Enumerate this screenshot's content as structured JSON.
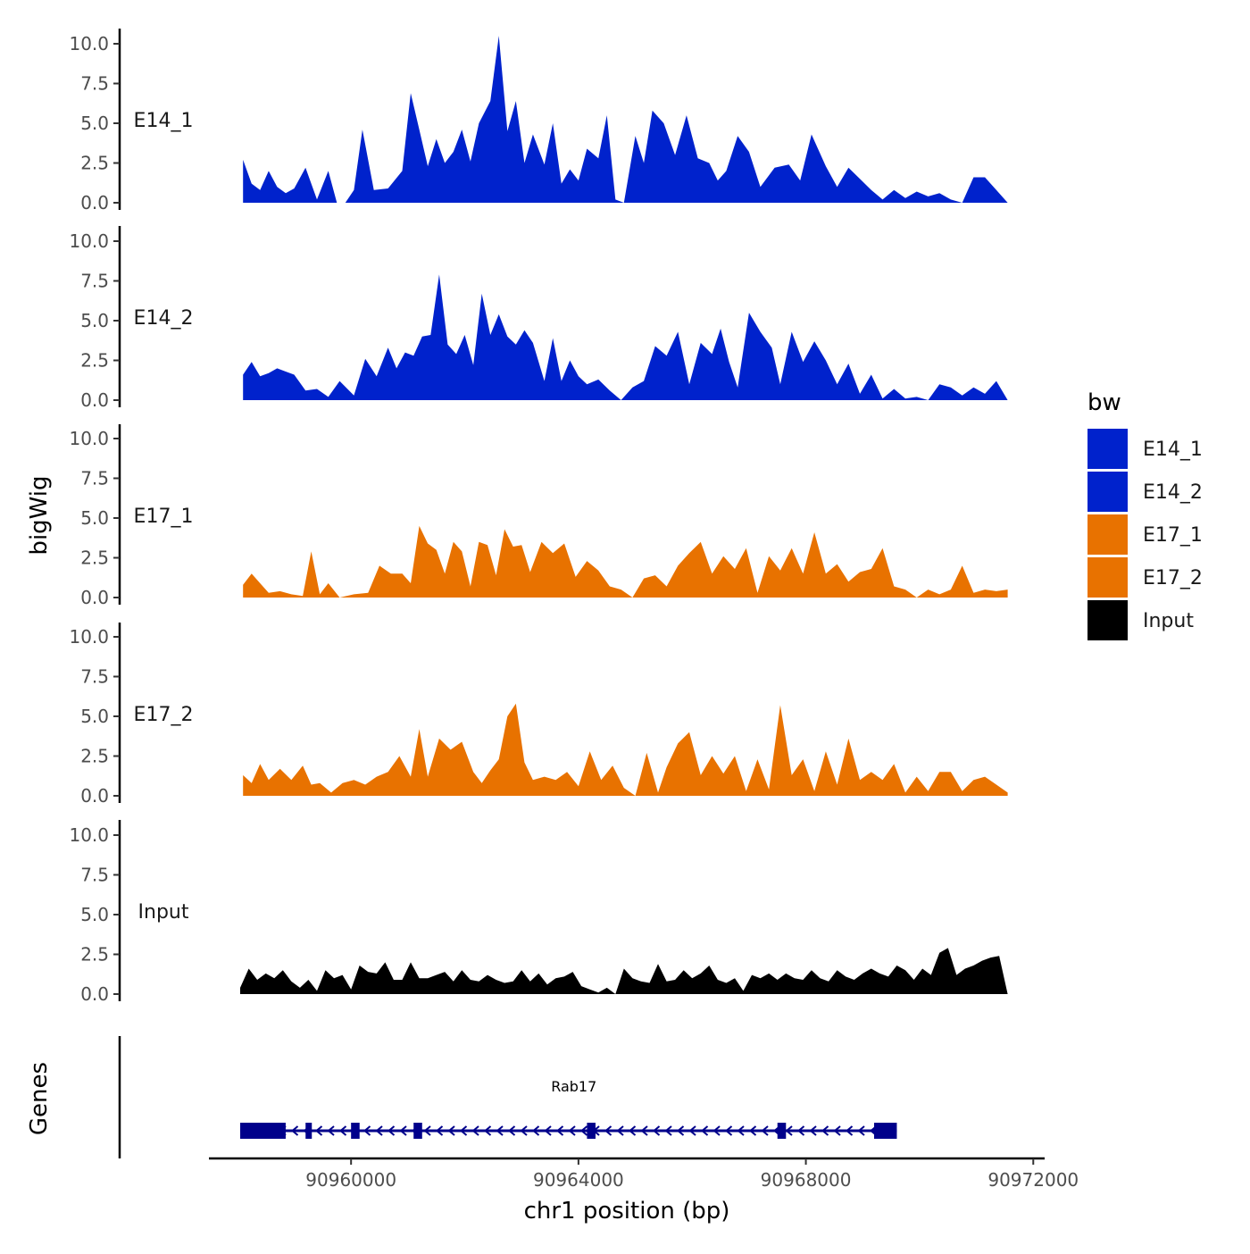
{
  "chart_data": {
    "type": "area",
    "title": "",
    "xlabel": "chr1 position (bp)",
    "ylabel": "bigWig",
    "gene_panel_label": "Genes",
    "xlim": [
      90957500,
      90972200
    ],
    "ylim": [
      0,
      10.5
    ],
    "x_ticks": [
      {
        "value": 90960000,
        "label": "90960000"
      },
      {
        "value": 90964000,
        "label": "90964000"
      },
      {
        "value": 90968000,
        "label": "90968000"
      },
      {
        "value": 90972000,
        "label": "90972000"
      }
    ],
    "y_ticks": [
      {
        "value": 0,
        "label": "0.0"
      },
      {
        "value": 2.5,
        "label": "2.5"
      },
      {
        "value": 5,
        "label": "5.0"
      },
      {
        "value": 7.5,
        "label": "7.5"
      },
      {
        "value": 10,
        "label": "10.0"
      }
    ],
    "legend": {
      "title": "bw",
      "position": "right",
      "entries": [
        {
          "label": "E14_1",
          "color": "#0022cc"
        },
        {
          "label": "E14_2",
          "color": "#0022cc"
        },
        {
          "label": "E17_1",
          "color": "#e87200"
        },
        {
          "label": "E17_2",
          "color": "#e87200"
        },
        {
          "label": "Input",
          "color": "#000000"
        }
      ]
    },
    "series": [
      {
        "name": "E14_1",
        "color": "#0022cc",
        "x": [
          90958100,
          90958250,
          90958400,
          90958550,
          90958700,
          90958850,
          90959000,
          90959200,
          90959400,
          90959600,
          90959750,
          90959900,
          90960050,
          90960200,
          90960400,
          90960650,
          90960900,
          90961050,
          90961200,
          90961350,
          90961500,
          90961650,
          90961800,
          90961950,
          90962100,
          90962250,
          90962450,
          90962600,
          90962750,
          90962900,
          90963050,
          90963200,
          90963400,
          90963550,
          90963700,
          90963850,
          90964000,
          90964150,
          90964350,
          90964500,
          90964650,
          90964800,
          90965000,
          90965150,
          90965300,
          90965500,
          90965700,
          90965900,
          90966100,
          90966300,
          90966450,
          90966600,
          90966800,
          90967000,
          90967200,
          90967450,
          90967700,
          90967900,
          90968100,
          90968350,
          90968550,
          90968750,
          90968950,
          90969150,
          90969350,
          90969550,
          90969750,
          90969950,
          90970150,
          90970350,
          90970550,
          90970750,
          90970950,
          90971150,
          90971350,
          90971550
        ],
        "values": [
          2.7,
          1.2,
          0.8,
          2.0,
          1.0,
          0.6,
          0.9,
          2.2,
          0.2,
          2.0,
          0.0,
          0.0,
          0.8,
          4.6,
          0.8,
          0.9,
          2.0,
          6.9,
          4.6,
          2.3,
          4.0,
          2.5,
          3.2,
          4.6,
          2.6,
          5.0,
          6.4,
          10.5,
          4.5,
          6.4,
          2.5,
          4.3,
          2.4,
          5.0,
          1.2,
          2.1,
          1.4,
          3.4,
          2.8,
          5.5,
          0.2,
          0.0,
          4.2,
          2.5,
          5.8,
          5.0,
          3.0,
          5.5,
          2.8,
          2.5,
          1.4,
          2.0,
          4.2,
          3.2,
          1.0,
          2.2,
          2.4,
          1.4,
          4.3,
          2.3,
          1.0,
          2.2,
          1.5,
          0.8,
          0.2,
          0.8,
          0.3,
          0.7,
          0.4,
          0.6,
          0.2,
          0.0,
          1.6,
          1.6,
          0.8,
          0.0
        ]
      },
      {
        "name": "E14_2",
        "color": "#0022cc",
        "x": [
          90958100,
          90958250,
          90958400,
          90958550,
          90958700,
          90958850,
          90959000,
          90959200,
          90959400,
          90959600,
          90959800,
          90960050,
          90960250,
          90960450,
          90960650,
          90960800,
          90960950,
          90961100,
          90961250,
          90961400,
          90961550,
          90961700,
          90961850,
          90962000,
          90962150,
          90962300,
          90962450,
          90962600,
          90962750,
          90962900,
          90963050,
          90963200,
          90963400,
          90963550,
          90963700,
          90963850,
          90964000,
          90964150,
          90964350,
          90964550,
          90964750,
          90964950,
          90965150,
          90965350,
          90965550,
          90965750,
          90965950,
          90966150,
          90966350,
          90966500,
          90966650,
          90966800,
          90967000,
          90967200,
          90967400,
          90967550,
          90967750,
          90967950,
          90968150,
          90968350,
          90968550,
          90968750,
          90968950,
          90969150,
          90969350,
          90969550,
          90969750,
          90969950,
          90970150,
          90970350,
          90970550,
          90970750,
          90970950,
          90971150,
          90971350,
          90971550
        ],
        "values": [
          1.6,
          2.4,
          1.5,
          1.7,
          2.0,
          1.8,
          1.6,
          0.6,
          0.7,
          0.2,
          1.2,
          0.3,
          2.6,
          1.5,
          3.3,
          2.0,
          3.0,
          2.8,
          4.0,
          4.1,
          7.9,
          3.5,
          2.9,
          4.1,
          2.2,
          6.7,
          4.1,
          5.4,
          4.0,
          3.5,
          4.4,
          3.6,
          1.2,
          3.9,
          1.2,
          2.5,
          1.5,
          1.0,
          1.3,
          0.6,
          0.0,
          0.8,
          1.2,
          3.4,
          2.8,
          4.3,
          1.0,
          3.6,
          2.9,
          4.5,
          2.4,
          0.8,
          5.5,
          4.3,
          3.3,
          1.0,
          4.3,
          2.4,
          3.7,
          2.5,
          1.0,
          2.3,
          0.4,
          1.6,
          0.1,
          0.7,
          0.1,
          0.2,
          0.0,
          1.0,
          0.8,
          0.3,
          0.8,
          0.4,
          1.2,
          0.0
        ]
      },
      {
        "name": "E17_1",
        "color": "#e87200",
        "x": [
          90958100,
          90958250,
          90958400,
          90958550,
          90958750,
          90958950,
          90959150,
          90959300,
          90959450,
          90959600,
          90959800,
          90960050,
          90960300,
          90960500,
          90960700,
          90960900,
          90961050,
          90961200,
          90961350,
          90961500,
          90961650,
          90961800,
          90961950,
          90962100,
          90962250,
          90962400,
          90962550,
          90962700,
          90962850,
          90963000,
          90963150,
          90963350,
          90963550,
          90963750,
          90963950,
          90964150,
          90964350,
          90964550,
          90964750,
          90964950,
          90965150,
          90965350,
          90965550,
          90965750,
          90965950,
          90966150,
          90966350,
          90966550,
          90966750,
          90966950,
          90967150,
          90967350,
          90967550,
          90967750,
          90967950,
          90968150,
          90968350,
          90968550,
          90968750,
          90968950,
          90969150,
          90969350,
          90969550,
          90969750,
          90969950,
          90970150,
          90970350,
          90970550,
          90970750,
          90970950,
          90971150,
          90971350,
          90971550
        ],
        "values": [
          0.8,
          1.5,
          0.9,
          0.3,
          0.4,
          0.2,
          0.1,
          2.9,
          0.2,
          0.9,
          0.0,
          0.2,
          0.3,
          2.0,
          1.5,
          1.5,
          0.9,
          4.5,
          3.4,
          3.0,
          1.5,
          3.5,
          2.9,
          0.7,
          3.5,
          3.3,
          1.4,
          4.3,
          3.2,
          3.3,
          1.6,
          3.5,
          2.8,
          3.4,
          1.3,
          2.3,
          1.7,
          0.7,
          0.5,
          0.0,
          1.2,
          1.4,
          0.7,
          2.0,
          2.8,
          3.5,
          1.5,
          2.6,
          1.8,
          3.1,
          0.3,
          2.6,
          1.7,
          3.1,
          1.5,
          4.1,
          1.5,
          2.1,
          1.0,
          1.6,
          1.8,
          3.1,
          0.7,
          0.5,
          0.0,
          0.5,
          0.2,
          0.5,
          2.0,
          0.3,
          0.5,
          0.4,
          0.5
        ]
      },
      {
        "name": "E17_2",
        "color": "#e87200",
        "x": [
          90958100,
          90958250,
          90958400,
          90958550,
          90958750,
          90958950,
          90959150,
          90959300,
          90959450,
          90959650,
          90959850,
          90960050,
          90960250,
          90960450,
          90960650,
          90960850,
          90961050,
          90961200,
          90961350,
          90961550,
          90961750,
          90961950,
          90962150,
          90962300,
          90962450,
          90962600,
          90962750,
          90962900,
          90963050,
          90963200,
          90963400,
          90963600,
          90963800,
          90964000,
          90964200,
          90964400,
          90964600,
          90964800,
          90965000,
          90965200,
          90965400,
          90965550,
          90965750,
          90965950,
          90966150,
          90966350,
          90966550,
          90966750,
          90966950,
          90967150,
          90967350,
          90967550,
          90967750,
          90967950,
          90968150,
          90968350,
          90968550,
          90968750,
          90968950,
          90969150,
          90969350,
          90969550,
          90969750,
          90969950,
          90970150,
          90970350,
          90970550,
          90970750,
          90970950,
          90971150,
          90971350,
          90971550
        ],
        "values": [
          1.3,
          0.8,
          2.0,
          1.0,
          1.7,
          1.0,
          1.9,
          0.7,
          0.8,
          0.2,
          0.8,
          1.0,
          0.7,
          1.2,
          1.5,
          2.5,
          1.2,
          4.2,
          1.2,
          3.6,
          2.9,
          3.4,
          1.5,
          0.8,
          1.6,
          2.3,
          5.0,
          5.8,
          2.1,
          1.0,
          1.2,
          1.0,
          1.5,
          0.6,
          2.8,
          1.0,
          1.9,
          0.5,
          0.0,
          2.7,
          0.2,
          1.8,
          3.3,
          4.0,
          1.3,
          2.5,
          1.4,
          2.5,
          0.3,
          2.3,
          0.4,
          5.7,
          1.3,
          2.3,
          0.3,
          2.8,
          0.7,
          3.6,
          1.0,
          1.5,
          1.0,
          2.0,
          0.2,
          1.2,
          0.3,
          1.5,
          1.5,
          0.3,
          1.0,
          1.2,
          0.7,
          0.2
        ]
      },
      {
        "name": "Input",
        "color": "#000000",
        "x": [
          90958050,
          90958200,
          90958350,
          90958500,
          90958650,
          90958800,
          90958950,
          90959100,
          90959250,
          90959400,
          90959550,
          90959700,
          90959850,
          90960000,
          90960150,
          90960300,
          90960450,
          90960600,
          90960750,
          90960900,
          90961050,
          90961200,
          90961350,
          90961500,
          90961650,
          90961800,
          90961950,
          90962100,
          90962250,
          90962400,
          90962550,
          90962700,
          90962850,
          90963000,
          90963150,
          90963300,
          90963450,
          90963600,
          90963750,
          90963900,
          90964050,
          90964200,
          90964350,
          90964500,
          90964650,
          90964800,
          90964950,
          90965100,
          90965250,
          90965400,
          90965550,
          90965700,
          90965850,
          90966000,
          90966150,
          90966300,
          90966450,
          90966600,
          90966750,
          90966900,
          90967050,
          90967200,
          90967350,
          90967500,
          90967650,
          90967800,
          90967950,
          90968100,
          90968250,
          90968400,
          90968550,
          90968700,
          90968850,
          90969000,
          90969150,
          90969300,
          90969450,
          90969600,
          90969750,
          90969900,
          90970050,
          90970200,
          90970350,
          90970500,
          90970650,
          90970800,
          90970950,
          90971100,
          90971250,
          90971400,
          90971550
        ],
        "values": [
          0.4,
          1.6,
          0.9,
          1.3,
          1.0,
          1.5,
          0.8,
          0.4,
          0.9,
          0.2,
          1.5,
          1.0,
          1.2,
          0.3,
          1.8,
          1.4,
          1.3,
          2.0,
          0.9,
          0.9,
          2.0,
          1.0,
          1.0,
          1.2,
          1.4,
          0.8,
          1.5,
          0.9,
          0.8,
          1.2,
          0.9,
          0.7,
          0.8,
          1.5,
          0.8,
          1.3,
          0.6,
          1.0,
          1.1,
          1.4,
          0.5,
          0.3,
          0.1,
          0.4,
          0.0,
          1.6,
          1.0,
          0.8,
          0.7,
          1.9,
          0.8,
          0.9,
          1.5,
          1.0,
          1.3,
          1.8,
          0.9,
          0.7,
          1.0,
          0.2,
          1.2,
          1.0,
          1.3,
          0.9,
          1.3,
          1.0,
          0.9,
          1.5,
          1.0,
          0.8,
          1.5,
          1.1,
          0.9,
          1.3,
          1.6,
          1.3,
          1.1,
          1.8,
          1.5,
          0.9,
          1.6,
          1.2,
          2.6,
          2.9,
          1.2,
          1.6,
          1.8,
          2.1,
          2.3,
          2.4,
          0.0
        ]
      }
    ],
    "gene": {
      "name": "Rab17",
      "strand": "-",
      "start": 90958050,
      "end": 90969600,
      "color": "#00008b",
      "exons": [
        [
          90958050,
          90958850
        ],
        [
          90959200,
          90959300
        ],
        [
          90960000,
          90960150
        ],
        [
          90961100,
          90961250
        ],
        [
          90964150,
          90964300
        ],
        [
          90967500,
          90967650
        ],
        [
          90969200,
          90969600
        ]
      ]
    }
  }
}
